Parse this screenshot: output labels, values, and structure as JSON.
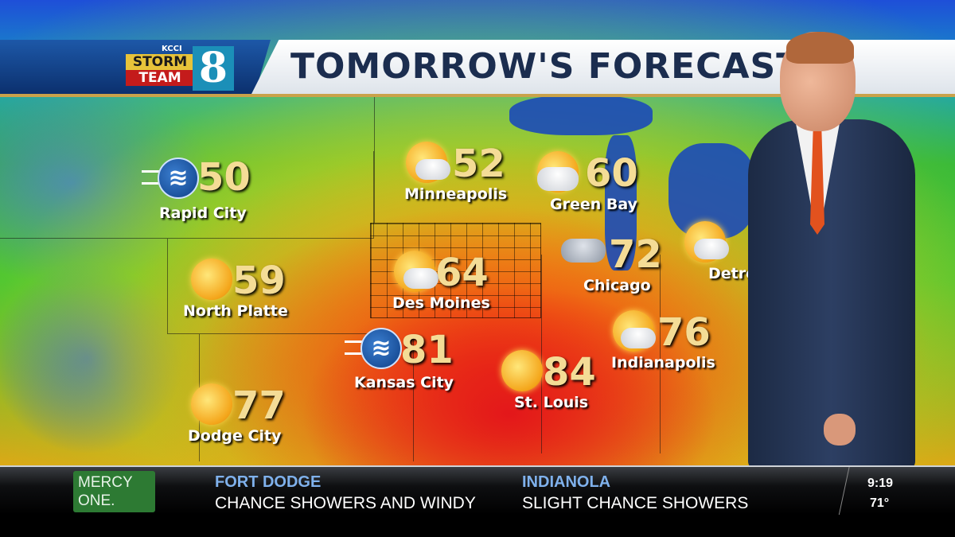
{
  "header": {
    "title": "TOMORROW'S FORECAST",
    "logo": {
      "station": "KCCI",
      "line1": "STORM",
      "line2": "TEAM",
      "number": "8"
    }
  },
  "cities": [
    {
      "name": "Rapid City",
      "temp": "50",
      "icon": "wind-icon"
    },
    {
      "name": "Minneapolis",
      "temp": "52",
      "icon": "partly-sunny-icon"
    },
    {
      "name": "Green Bay",
      "temp": "60",
      "icon": "partly-cloudy-icon"
    },
    {
      "name": "North Platte",
      "temp": "59",
      "icon": "hazy-sun-icon"
    },
    {
      "name": "Des Moines",
      "temp": "64",
      "icon": "partly-sunny-icon"
    },
    {
      "name": "Chicago",
      "temp": "72",
      "icon": "cloudy-icon"
    },
    {
      "name": "Detroit",
      "temp": "",
      "icon": "partly-sunny-icon"
    },
    {
      "name": "Kansas City",
      "temp": "81",
      "icon": "wind-icon"
    },
    {
      "name": "St. Louis",
      "temp": "84",
      "icon": "hazy-sun-icon"
    },
    {
      "name": "Indianapolis",
      "temp": "76",
      "icon": "partly-sunny-icon"
    },
    {
      "name": "Dodge City",
      "temp": "77",
      "icon": "sunny-icon"
    }
  ],
  "ticker": {
    "sponsor": {
      "line1": "MERCY",
      "line2": "ONE."
    },
    "items": [
      {
        "location": "FORT DODGE",
        "condition": "CHANCE SHOWERS AND WINDY"
      },
      {
        "location": "INDIANOLA",
        "condition": "SLIGHT CHANCE SHOWERS"
      }
    ],
    "time": "9:19",
    "temperature": "71°"
  },
  "colors": {
    "header_blue": "#0b2f6c",
    "title_text": "#1b2d4f",
    "temp_text": "#f4dc96",
    "ticker_location": "#7fb1ec",
    "sponsor_green": "#2d7a33"
  }
}
